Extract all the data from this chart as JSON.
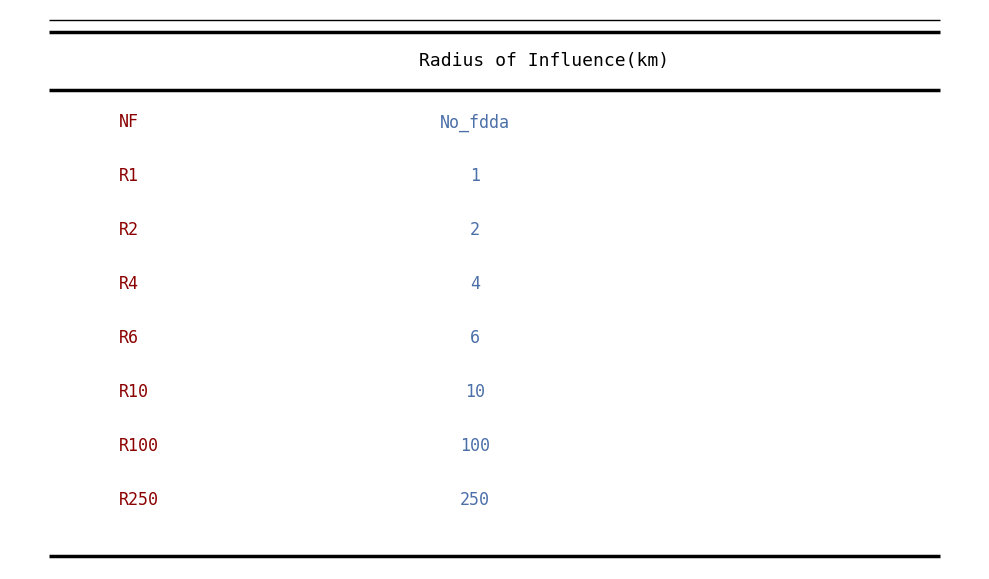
{
  "header": "Radius of Influence(km)",
  "rows": [
    [
      "NF",
      "No_fdda"
    ],
    [
      "R1",
      "1"
    ],
    [
      "R2",
      "2"
    ],
    [
      "R4",
      "4"
    ],
    [
      "R6",
      "6"
    ],
    [
      "R10",
      "10"
    ],
    [
      "R100",
      "100"
    ],
    [
      "R250",
      "250"
    ]
  ],
  "col1_color": "#8B0000",
  "col2_color": "#4B6FA8",
  "header_color": "#000000",
  "bg_color": "#FFFFFF",
  "fig_width": 9.89,
  "fig_height": 5.79,
  "dpi": 100
}
